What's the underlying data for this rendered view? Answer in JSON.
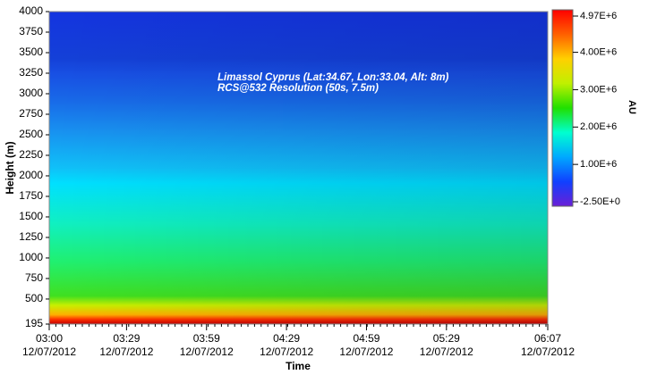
{
  "chart_data": {
    "type": "heatmap",
    "xlabel": "Time",
    "ylabel": "Height (m)",
    "colorbar_label": "AU",
    "annotations": [
      "Limassol Cyprus (Lat:34.67, Lon:33.04, Alt: 8m)",
      "RCS@532 Resolution (50s, 7.5m)"
    ],
    "xlim": [
      0,
      187
    ],
    "xticks": [
      {
        "value": 0,
        "label": "03:00",
        "date": "12/07/2012"
      },
      {
        "value": 29,
        "label": "03:29",
        "date": "12/07/2012"
      },
      {
        "value": 59,
        "label": "03:59",
        "date": "12/07/2012"
      },
      {
        "value": 89,
        "label": "04:29",
        "date": "12/07/2012"
      },
      {
        "value": 119,
        "label": "04:59",
        "date": "12/07/2012"
      },
      {
        "value": 149,
        "label": "05:29",
        "date": "12/07/2012"
      },
      {
        "value": 187,
        "label": "06:07",
        "date": "12/07/2012"
      }
    ],
    "ylim": [
      195,
      4000
    ],
    "yticks": [
      195,
      500,
      750,
      1000,
      1250,
      1500,
      1750,
      2000,
      2250,
      2500,
      2750,
      3000,
      3250,
      3500,
      3750,
      4000
    ],
    "clim": [
      -2.5,
      4970000
    ],
    "cticks": [
      {
        "value": 4970000,
        "label": "4.97E+6"
      },
      {
        "value": 4000000,
        "label": "4.00E+6"
      },
      {
        "value": 3000000,
        "label": "3.00E+6"
      },
      {
        "value": 2000000,
        "label": "2.00E+6"
      },
      {
        "value": 1000000,
        "label": "1.00E+6"
      },
      {
        "value": -2.5,
        "label": "-2.50E+0"
      }
    ],
    "colormap": [
      "#6a1fd6",
      "#1040ff",
      "#00a8ff",
      "#00ffd0",
      "#20e000",
      "#c0f000",
      "#ffd000",
      "#ff6000",
      "#ff0000"
    ]
  }
}
